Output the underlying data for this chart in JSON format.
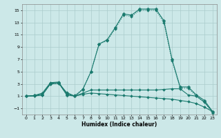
{
  "xlabel": "Humidex (Indice chaleur)",
  "background_color": "#cce8e8",
  "grid_color": "#aacccc",
  "line_color": "#1a7a6e",
  "xlim": [
    -0.5,
    23.5
  ],
  "ylim": [
    -2,
    16
  ],
  "xticks": [
    0,
    1,
    2,
    3,
    4,
    5,
    6,
    7,
    8,
    9,
    10,
    11,
    12,
    13,
    14,
    15,
    16,
    17,
    18,
    19,
    20,
    21,
    22,
    23
  ],
  "yticks": [
    -1,
    1,
    3,
    5,
    7,
    9,
    11,
    13,
    15
  ],
  "lines": [
    {
      "x": [
        0,
        1,
        2,
        3,
        4,
        5,
        6,
        7,
        8,
        9,
        10,
        11,
        12,
        13,
        14,
        15,
        16,
        17,
        18,
        19,
        20,
        21,
        22,
        23
      ],
      "y": [
        1.0,
        1.1,
        1.3,
        3.1,
        3.2,
        1.2,
        1.0,
        2.1,
        5.0,
        9.5,
        10.2,
        12.2,
        14.4,
        14.2,
        15.2,
        15.2,
        15.2,
        13.3,
        7.0,
        2.5,
        2.5,
        1.2,
        0.3,
        -1.5
      ],
      "style": "-",
      "marker": "D",
      "markersize": 2.5
    },
    {
      "x": [
        0,
        1,
        2,
        3,
        4,
        5,
        6,
        7,
        8,
        9,
        10,
        11,
        12,
        13,
        14,
        15,
        16,
        17,
        18,
        19,
        20,
        21,
        22,
        23
      ],
      "y": [
        1.0,
        1.05,
        1.2,
        3.0,
        3.1,
        1.3,
        1.1,
        2.2,
        5.0,
        9.5,
        10.0,
        12.0,
        14.2,
        14.0,
        15.0,
        15.0,
        15.0,
        13.0,
        6.8,
        2.3,
        2.3,
        1.0,
        0.1,
        -1.8
      ],
      "style": ":",
      "marker": "D",
      "markersize": 2.0
    },
    {
      "x": [
        0,
        1,
        2,
        3,
        4,
        5,
        6,
        7,
        8,
        9,
        10,
        11,
        12,
        13,
        14,
        15,
        16,
        17,
        18,
        19,
        20,
        21,
        22,
        23
      ],
      "y": [
        1.0,
        1.1,
        1.5,
        3.2,
        3.3,
        1.4,
        1.0,
        1.5,
        2.0,
        2.0,
        2.0,
        2.0,
        2.0,
        2.0,
        2.0,
        2.0,
        2.0,
        2.1,
        2.2,
        2.2,
        1.2,
        1.0,
        0.0,
        -1.5
      ],
      "style": "-",
      "marker": "D",
      "markersize": 2.0
    },
    {
      "x": [
        0,
        1,
        2,
        3,
        4,
        5,
        6,
        7,
        8,
        9,
        10,
        11,
        12,
        13,
        14,
        15,
        16,
        17,
        18,
        19,
        20,
        21,
        22,
        23
      ],
      "y": [
        1.0,
        1.0,
        1.2,
        3.0,
        3.1,
        1.6,
        1.0,
        1.3,
        1.5,
        1.4,
        1.3,
        1.2,
        1.1,
        1.0,
        0.9,
        0.8,
        0.7,
        0.6,
        0.5,
        0.3,
        0.1,
        -0.2,
        -0.8,
        -1.5
      ],
      "style": "-",
      "marker": "D",
      "markersize": 2.0
    }
  ]
}
